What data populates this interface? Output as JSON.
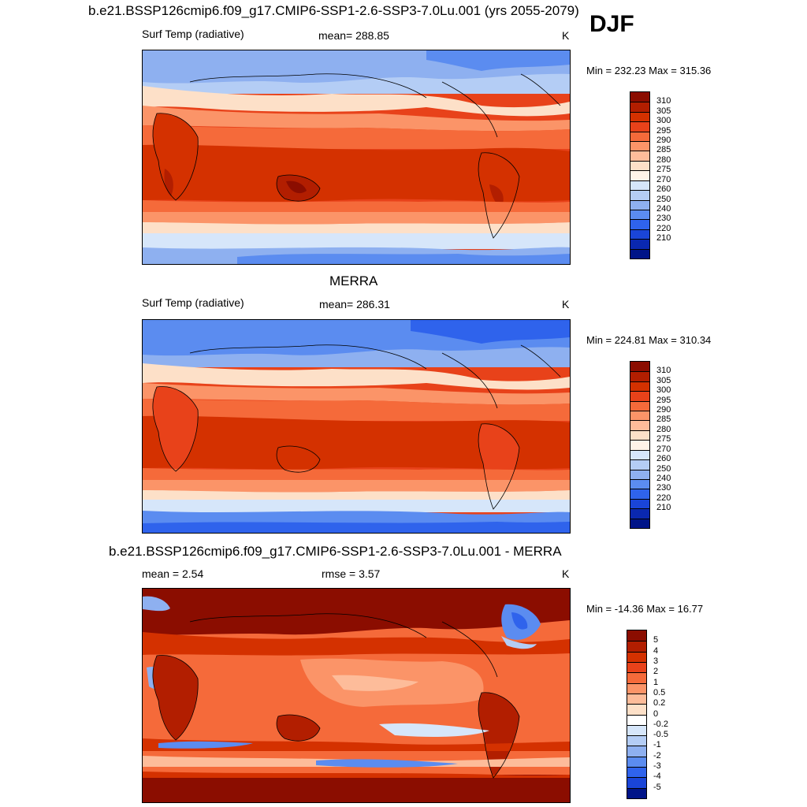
{
  "season": "DJF",
  "panels": [
    {
      "title": "b.e21.BSSP126cmip6.f09_g17.CMIP6-SSP1-2.6-SSP3-7.0Lu.001 (yrs 2055-2079)",
      "left_label": "Surf Temp (radiative)",
      "center_label": "mean= 288.85",
      "units": "K",
      "minmax": "Min = 232.23 Max = 315.36",
      "colorbar": {
        "labels": [
          "310",
          "305",
          "300",
          "295",
          "290",
          "285",
          "280",
          "275",
          "270",
          "260",
          "250",
          "240",
          "230",
          "220",
          "210"
        ],
        "colors": [
          "#8b0d00",
          "#b21e00",
          "#d43100",
          "#e8421a",
          "#f56a3a",
          "#fb9468",
          "#fdbc9a",
          "#fde0c8",
          "#fff4e8",
          "#d6e6fa",
          "#b4cdf5",
          "#8eb0f0",
          "#5b8cf0",
          "#2f63ec",
          "#1a45d8",
          "#0a28b0",
          "#001488"
        ]
      }
    },
    {
      "title": "MERRA",
      "left_label": "Surf Temp (radiative)",
      "center_label": "mean= 286.31",
      "units": "K",
      "minmax": "Min = 224.81 Max = 310.34",
      "colorbar": {
        "labels": [
          "310",
          "305",
          "300",
          "295",
          "290",
          "285",
          "280",
          "275",
          "270",
          "260",
          "250",
          "240",
          "230",
          "220",
          "210"
        ],
        "colors": [
          "#8b0d00",
          "#b21e00",
          "#d43100",
          "#e8421a",
          "#f56a3a",
          "#fb9468",
          "#fdbc9a",
          "#fde0c8",
          "#fff4e8",
          "#d6e6fa",
          "#b4cdf5",
          "#8eb0f0",
          "#5b8cf0",
          "#2f63ec",
          "#1a45d8",
          "#0a28b0",
          "#001488"
        ]
      }
    },
    {
      "title": "b.e21.BSSP126cmip6.f09_g17.CMIP6-SSP1-2.6-SSP3-7.0Lu.001 - MERRA",
      "left_label": "mean =   2.54",
      "center_label": "rmse =   3.57",
      "units": "K",
      "minmax": "Min = -14.36 Max =  16.77",
      "colorbar": {
        "labels": [
          "5",
          "4",
          "3",
          "2",
          "1",
          "0.5",
          "0.2",
          "0",
          "-0.2",
          "-0.5",
          "-1",
          "-2",
          "-3",
          "-4",
          "-5"
        ],
        "colors": [
          "#8b0d00",
          "#b21e00",
          "#d43100",
          "#e8421a",
          "#f56a3a",
          "#fb9468",
          "#fdbc9a",
          "#fde0c8",
          "#ffffff",
          "#d6e6fa",
          "#b4cdf5",
          "#8eb0f0",
          "#5b8cf0",
          "#2f63ec",
          "#1a45d8",
          "#001488"
        ]
      }
    }
  ]
}
